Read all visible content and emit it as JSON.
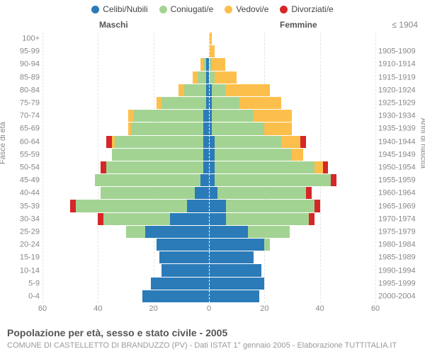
{
  "legend": [
    {
      "label": "Celibi/Nubili",
      "color": "#2b7bb9"
    },
    {
      "label": "Coniugati/e",
      "color": "#a3d393"
    },
    {
      "label": "Vedovi/e",
      "color": "#fdbf4b"
    },
    {
      "label": "Divorziati/e",
      "color": "#d62728"
    }
  ],
  "header_m": "Maschi",
  "header_f": "Femmine",
  "header_r": "≤ 1904",
  "ylabel_left": "Fasce di età",
  "ylabel_right": "Anni di nascita",
  "age_labels": [
    "0-4",
    "5-9",
    "10-14",
    "15-19",
    "20-24",
    "25-29",
    "30-34",
    "35-39",
    "40-44",
    "45-49",
    "50-54",
    "55-59",
    "60-64",
    "65-69",
    "70-74",
    "75-79",
    "80-84",
    "85-89",
    "90-94",
    "95-99",
    "100+"
  ],
  "birth_labels": [
    "2000-2004",
    "1995-1999",
    "1990-1994",
    "1985-1989",
    "1980-1984",
    "1975-1979",
    "1970-1974",
    "1965-1969",
    "1960-1964",
    "1955-1959",
    "1950-1954",
    "1945-1949",
    "1940-1944",
    "1935-1939",
    "1930-1934",
    "1925-1929",
    "1920-1924",
    "1915-1919",
    "1910-1914",
    "1905-1909",
    ""
  ],
  "xmax": 60,
  "xticks": [
    60,
    40,
    20,
    0,
    20,
    40,
    60
  ],
  "title": "Popolazione per età, sesso e stato civile - 2005",
  "subtitle": "COMUNE DI CASTELLETTO DI BRANDUZZO (PV) - Dati ISTAT 1° gennaio 2005 - Elaborazione TUTTITALIA.IT",
  "colors": {
    "single": "#2b7bb9",
    "married": "#a3d393",
    "widowed": "#fdbf4b",
    "divorced": "#d62728"
  },
  "rows": [
    {
      "m": [
        24,
        0,
        0,
        0
      ],
      "f": [
        18,
        0,
        0,
        0
      ]
    },
    {
      "m": [
        21,
        0,
        0,
        0
      ],
      "f": [
        20,
        0,
        0,
        0
      ]
    },
    {
      "m": [
        17,
        0,
        0,
        0
      ],
      "f": [
        19,
        0,
        0,
        0
      ]
    },
    {
      "m": [
        18,
        0,
        0,
        0
      ],
      "f": [
        16,
        0,
        0,
        0
      ]
    },
    {
      "m": [
        19,
        0,
        0,
        0
      ],
      "f": [
        20,
        2,
        0,
        0
      ]
    },
    {
      "m": [
        23,
        7,
        0,
        0
      ],
      "f": [
        14,
        15,
        0,
        0
      ]
    },
    {
      "m": [
        14,
        24,
        0,
        2
      ],
      "f": [
        6,
        30,
        0,
        2
      ]
    },
    {
      "m": [
        8,
        40,
        0,
        2
      ],
      "f": [
        6,
        32,
        0,
        2
      ]
    },
    {
      "m": [
        5,
        34,
        0,
        0
      ],
      "f": [
        3,
        32,
        0,
        2
      ]
    },
    {
      "m": [
        3,
        38,
        0,
        0
      ],
      "f": [
        2,
        42,
        0,
        2
      ]
    },
    {
      "m": [
        2,
        35,
        0,
        2
      ],
      "f": [
        2,
        36,
        3,
        2
      ]
    },
    {
      "m": [
        2,
        33,
        0,
        0
      ],
      "f": [
        2,
        28,
        4,
        0
      ]
    },
    {
      "m": [
        2,
        32,
        1,
        2
      ],
      "f": [
        2,
        24,
        7,
        2
      ]
    },
    {
      "m": [
        2,
        26,
        1,
        0
      ],
      "f": [
        1,
        19,
        10,
        0
      ]
    },
    {
      "m": [
        2,
        25,
        2,
        0
      ],
      "f": [
        1,
        15,
        14,
        0
      ]
    },
    {
      "m": [
        1,
        16,
        2,
        0
      ],
      "f": [
        1,
        10,
        15,
        0
      ]
    },
    {
      "m": [
        1,
        8,
        2,
        0
      ],
      "f": [
        1,
        5,
        16,
        0
      ]
    },
    {
      "m": [
        1,
        3,
        2,
        0
      ],
      "f": [
        0,
        2,
        8,
        0
      ]
    },
    {
      "m": [
        1,
        1,
        1,
        0
      ],
      "f": [
        0,
        1,
        5,
        0
      ]
    },
    {
      "m": [
        0,
        0,
        0,
        0
      ],
      "f": [
        0,
        0,
        2,
        0
      ]
    },
    {
      "m": [
        0,
        0,
        0,
        0
      ],
      "f": [
        0,
        0,
        1,
        0
      ]
    }
  ],
  "row_height_pct": 4.76,
  "grid_step": 20
}
